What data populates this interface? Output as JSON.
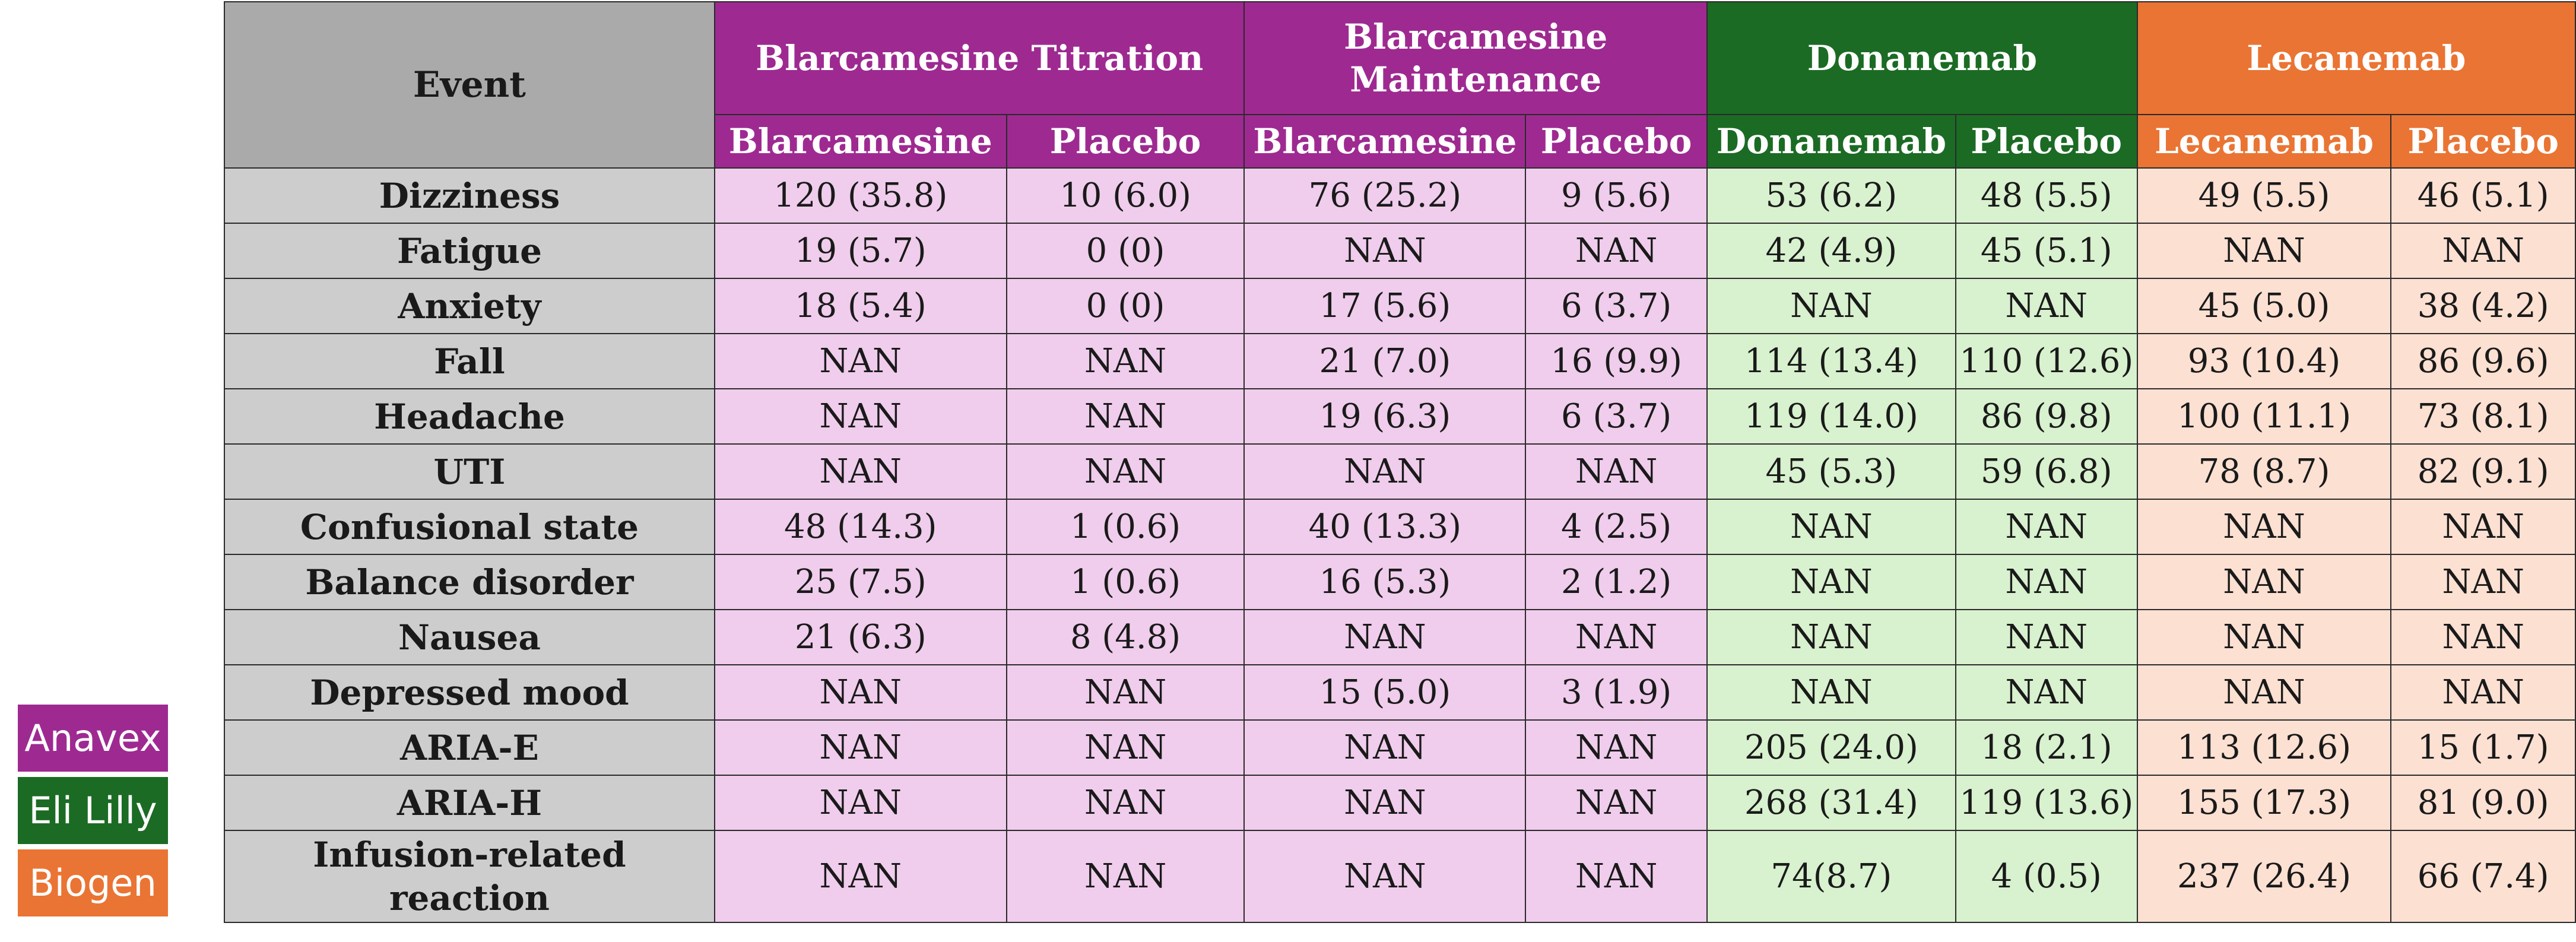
{
  "colors": {
    "anavex": "#9e2a91",
    "lilly": "#1b6b24",
    "biogen": "#ea7433",
    "anavex_cell": "#f0cdec",
    "lilly_cell": "#d8f1ce",
    "biogen_cell": "#fce0d2",
    "event_header": "#aaaaaa",
    "event_cell": "#cdcdcd"
  },
  "legend": [
    {
      "label": "Anavex",
      "color": "#9e2a91"
    },
    {
      "label": "Eli Lilly",
      "color": "#1b6b24"
    },
    {
      "label": "Biogen",
      "color": "#ea7433"
    }
  ],
  "table": {
    "event_header": "Event",
    "groups": [
      {
        "label": "Blarcamesine Titration",
        "company": "anavex",
        "sub": [
          "Blarcamesine",
          "Placebo"
        ]
      },
      {
        "label": "Blarcamesine Maintenance",
        "company": "anavex",
        "sub": [
          "Blarcamesine",
          "Placebo"
        ]
      },
      {
        "label": "Donanemab",
        "company": "lilly",
        "sub": [
          "Donanemab",
          "Placebo"
        ]
      },
      {
        "label": "Lecanemab",
        "company": "biogen",
        "sub": [
          "Lecanemab",
          "Placebo"
        ]
      }
    ],
    "rows": [
      {
        "event": "Dizziness",
        "values": [
          "120 (35.8)",
          "10 (6.0)",
          "76 (25.2)",
          "9 (5.6)",
          "53 (6.2)",
          "48 (5.5)",
          "49 (5.5)",
          "46 (5.1)"
        ]
      },
      {
        "event": "Fatigue",
        "values": [
          "19 (5.7)",
          "0 (0)",
          "NAN",
          "NAN",
          "42 (4.9)",
          "45 (5.1)",
          "NAN",
          "NAN"
        ]
      },
      {
        "event": "Anxiety",
        "values": [
          "18 (5.4)",
          "0 (0)",
          "17 (5.6)",
          "6 (3.7)",
          "NAN",
          "NAN",
          "45 (5.0)",
          "38 (4.2)"
        ]
      },
      {
        "event": "Fall",
        "values": [
          "NAN",
          "NAN",
          "21 (7.0)",
          "16 (9.9)",
          "114 (13.4)",
          "110 (12.6)",
          "93 (10.4)",
          "86 (9.6)"
        ]
      },
      {
        "event": "Headache",
        "values": [
          "NAN",
          "NAN",
          "19 (6.3)",
          "6 (3.7)",
          "119 (14.0)",
          "86 (9.8)",
          "100 (11.1)",
          "73 (8.1)"
        ]
      },
      {
        "event": "UTI",
        "values": [
          "NAN",
          "NAN",
          "NAN",
          "NAN",
          "45 (5.3)",
          "59 (6.8)",
          "78 (8.7)",
          "82 (9.1)"
        ]
      },
      {
        "event": "Confusional state",
        "values": [
          "48 (14.3)",
          "1 (0.6)",
          "40 (13.3)",
          "4 (2.5)",
          "NAN",
          "NAN",
          "NAN",
          "NAN"
        ]
      },
      {
        "event": "Balance disorder",
        "values": [
          "25 (7.5)",
          "1 (0.6)",
          "16 (5.3)",
          "2 (1.2)",
          "NAN",
          "NAN",
          "NAN",
          "NAN"
        ]
      },
      {
        "event": "Nausea",
        "values": [
          "21 (6.3)",
          "8 (4.8)",
          "NAN",
          "NAN",
          "NAN",
          "NAN",
          "NAN",
          "NAN"
        ]
      },
      {
        "event": "Depressed mood",
        "values": [
          "NAN",
          "NAN",
          "15 (5.0)",
          "3 (1.9)",
          "NAN",
          "NAN",
          "NAN",
          "NAN"
        ]
      },
      {
        "event": "ARIA-E",
        "values": [
          "NAN",
          "NAN",
          "NAN",
          "NAN",
          "205 (24.0)",
          "18 (2.1)",
          "113 (12.6)",
          "15 (1.7)"
        ]
      },
      {
        "event": "ARIA-H",
        "values": [
          "NAN",
          "NAN",
          "NAN",
          "NAN",
          "268 (31.4)",
          "119 (13.6)",
          "155 (17.3)",
          "81 (9.0)"
        ]
      },
      {
        "event": "Infusion-related reaction",
        "values": [
          "NAN",
          "NAN",
          "NAN",
          "NAN",
          "74(8.7)",
          "4 (0.5)",
          "237 (26.4)",
          "66 (7.4)"
        ]
      }
    ]
  }
}
